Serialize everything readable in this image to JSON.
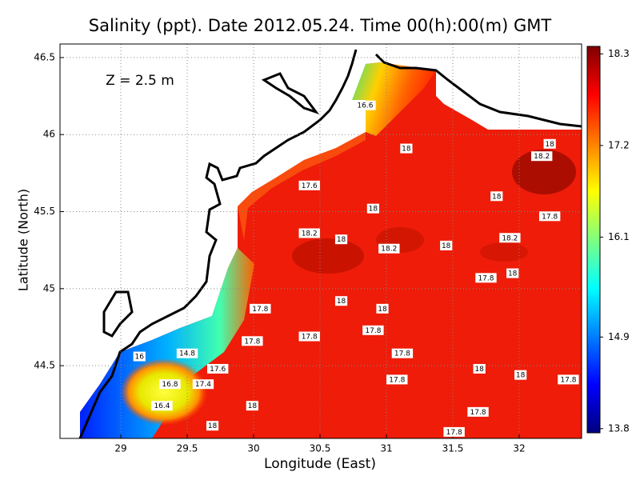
{
  "chart_data": {
    "type": "contour-map",
    "title": "Salinity (ppt). Date 2012.05.24. Time 00(h):00(m) GMT",
    "annotation": "Z = 2.5 m",
    "x_label": "Longitude (East)",
    "y_label": "Latitude (North)",
    "xlim": [
      28.542,
      32.47
    ],
    "ylim": [
      44.028,
      46.588
    ],
    "xticks": [
      29,
      29.5,
      30,
      30.5,
      31,
      31.5,
      32
    ],
    "yticks": [
      44.5,
      45,
      45.5,
      46,
      46.5
    ],
    "grid": true,
    "colorbar": {
      "clim": [
        13.75,
        18.39
      ],
      "ticks": [
        13.8,
        14.9,
        16.1,
        17.2,
        18.3
      ],
      "colors": [
        "#00007f",
        "#0000ff",
        "#007fff",
        "#00ffff",
        "#7fff7f",
        "#ffff00",
        "#ff7f00",
        "#ff0000",
        "#7f0000"
      ]
    },
    "contour_labels": [
      {
        "x": 30.84,
        "y": 46.19,
        "value": 16.6
      },
      {
        "x": 31.15,
        "y": 45.91,
        "value": 18
      },
      {
        "x": 32.23,
        "y": 45.94,
        "value": 18
      },
      {
        "x": 32.17,
        "y": 45.86,
        "value": 18.2
      },
      {
        "x": 30.42,
        "y": 45.67,
        "value": 17.6
      },
      {
        "x": 31.83,
        "y": 45.6,
        "value": 18
      },
      {
        "x": 30.9,
        "y": 45.52,
        "value": 18
      },
      {
        "x": 32.23,
        "y": 45.47,
        "value": 17.8
      },
      {
        "x": 30.42,
        "y": 45.36,
        "value": 18.2
      },
      {
        "x": 30.66,
        "y": 45.32,
        "value": 18
      },
      {
        "x": 31.02,
        "y": 45.26,
        "value": 18.2
      },
      {
        "x": 31.45,
        "y": 45.28,
        "value": 18
      },
      {
        "x": 31.93,
        "y": 45.33,
        "value": 18.2
      },
      {
        "x": 31.75,
        "y": 45.07,
        "value": 17.8
      },
      {
        "x": 31.95,
        "y": 45.1,
        "value": 18
      },
      {
        "x": 30.66,
        "y": 44.92,
        "value": 18
      },
      {
        "x": 30.05,
        "y": 44.87,
        "value": 17.8
      },
      {
        "x": 30.97,
        "y": 44.87,
        "value": 18
      },
      {
        "x": 30.9,
        "y": 44.73,
        "value": 17.8
      },
      {
        "x": 30.42,
        "y": 44.69,
        "value": 17.8
      },
      {
        "x": 29.99,
        "y": 44.66,
        "value": 17.8
      },
      {
        "x": 29.5,
        "y": 44.58,
        "value": 14.8
      },
      {
        "x": 31.12,
        "y": 44.58,
        "value": 17.8
      },
      {
        "x": 29.14,
        "y": 44.56,
        "value": 16
      },
      {
        "x": 29.73,
        "y": 44.48,
        "value": 17.6
      },
      {
        "x": 31.7,
        "y": 44.48,
        "value": 18
      },
      {
        "x": 32.01,
        "y": 44.44,
        "value": 18
      },
      {
        "x": 31.08,
        "y": 44.41,
        "value": 17.8
      },
      {
        "x": 32.37,
        "y": 44.41,
        "value": 17.8
      },
      {
        "x": 29.37,
        "y": 44.38,
        "value": 16.8
      },
      {
        "x": 29.62,
        "y": 44.38,
        "value": 17.4
      },
      {
        "x": 29.99,
        "y": 44.24,
        "value": 18
      },
      {
        "x": 29.31,
        "y": 44.24,
        "value": 16.4
      },
      {
        "x": 31.69,
        "y": 44.2,
        "value": 17.8
      },
      {
        "x": 29.69,
        "y": 44.11,
        "value": 18
      },
      {
        "x": 31.51,
        "y": 44.07,
        "value": 17.8
      }
    ]
  }
}
